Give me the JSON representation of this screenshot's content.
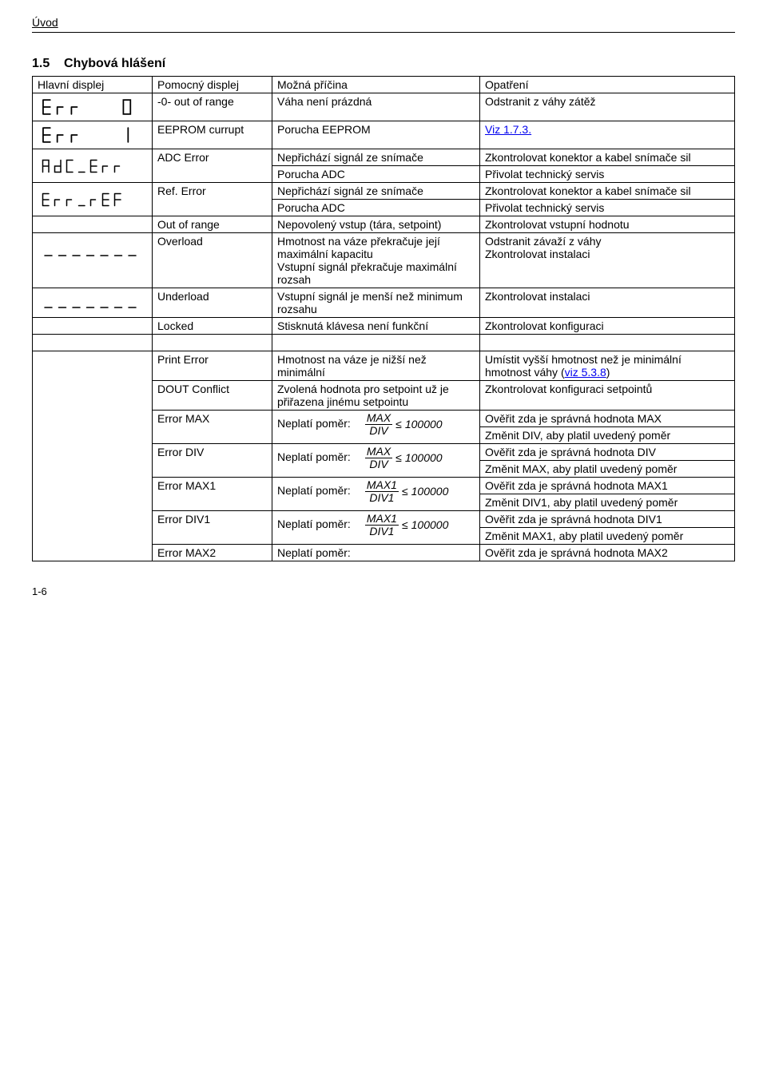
{
  "header": "Úvod",
  "section_num": "1.5",
  "section_title": "Chybová hlášení",
  "page_number": "1-6",
  "table": {
    "head": [
      "Hlavní displej",
      "Pomocný displej",
      "Možná příčina",
      "Opatření"
    ],
    "rows": [
      {
        "img": "err0",
        "col2": "-0- out of range",
        "col3": "Váha není prázdná",
        "col4": "Odstranit z váhy zátěž"
      },
      {
        "img": "err1",
        "col2": "EEPROM currupt",
        "col3": "Porucha EEPROM",
        "col4_link": "Viz 1.7.3."
      },
      {
        "img": "adc_err",
        "col2": "ADC Error",
        "sub": [
          {
            "col3": "Nepřichází signál ze snímače",
            "col4": "Zkontrolovat konektor a kabel snímače sil"
          },
          {
            "col3": "Porucha ADC",
            "col4": "Přivolat technický servis"
          }
        ]
      },
      {
        "img": "err_ref",
        "col2": "Ref. Error",
        "sub": [
          {
            "col3": "Nepřichází signál ze snímače",
            "col4": "Zkontrolovat konektor a kabel snímače sil"
          },
          {
            "col3": "Porucha ADC",
            "col4": "Přivolat technický servis"
          }
        ]
      },
      {
        "img_blank": true,
        "col2": "Out of range",
        "col3": "Nepovolený vstup (tára, setpoint)",
        "col4": "Zkontrolovat  vstupní hodnotu"
      },
      {
        "img": "dash_top",
        "col2": "Overload",
        "col3": "Hmotnost na váze překračuje její maximální kapacitu\nVstupní signál překračuje maximální rozsah",
        "col4": "Odstranit závaží z váhy\nZkontrolovat instalaci"
      },
      {
        "img": "dash_bot",
        "col2": "Underload",
        "col3": "Vstupní signál je menší než minimum rozsahu",
        "col4": "Zkontrolovat instalaci"
      },
      {
        "img_blank_noborder": true,
        "col2": "Locked",
        "col3": "Stisknutá klávesa není funkční",
        "col4": "Zkontrolovat konfiguraci"
      }
    ],
    "rows2": [
      {
        "col2": "Print Error",
        "col3": "Hmotnost na váze je nižší než minimální",
        "col4a": "Umístit vyšší hmotnost než je minimální hmotnost váhy (",
        "col4link": "viz  5.3.8",
        "col4b": ")"
      },
      {
        "col2": "DOUT Conflict",
        "col3": "Zvolená hodnota pro setpoint už je přiřazena jinému setpointu",
        "col4": "Zkontrolovat   konfiguraci setpointů"
      },
      {
        "col2": "Error MAX",
        "formula": {
          "num": "MAX",
          "den": "DIV",
          "limit": "100000"
        },
        "col4": [
          "Ověřit zda je správná hodnota MAX",
          "Změnit DIV, aby platil uvedený poměr"
        ]
      },
      {
        "col2": "Error DIV",
        "formula": {
          "num": "MAX",
          "den": "DIV",
          "limit": "100000"
        },
        "col4": [
          "Ověřit zda je správná hodnota DIV",
          "Změnit MAX, aby platil uvedený poměr"
        ]
      },
      {
        "col2": "Error MAX1",
        "formula": {
          "num": "MAX1",
          "den": "DIV1",
          "limit": "100000"
        },
        "col4": [
          "Ověřit zda je správná hodnota  MAX1",
          "Změnit DIV1, aby platil uvedený poměr"
        ]
      },
      {
        "col2": "Error DIV1",
        "formula": {
          "num": "MAX1",
          "den": "DIV1",
          "limit": "100000"
        },
        "col4": [
          "Ověřit zda je správná hodnota DIV1",
          "Změnit MAX1, aby platil uvedený poměr"
        ]
      },
      {
        "col2": "Error MAX2",
        "col3plain": "Neplatí poměr:",
        "col4": [
          "Ověřit zda je správná hodnota MAX2"
        ]
      }
    ],
    "neplati": "Neplatí poměr:"
  }
}
